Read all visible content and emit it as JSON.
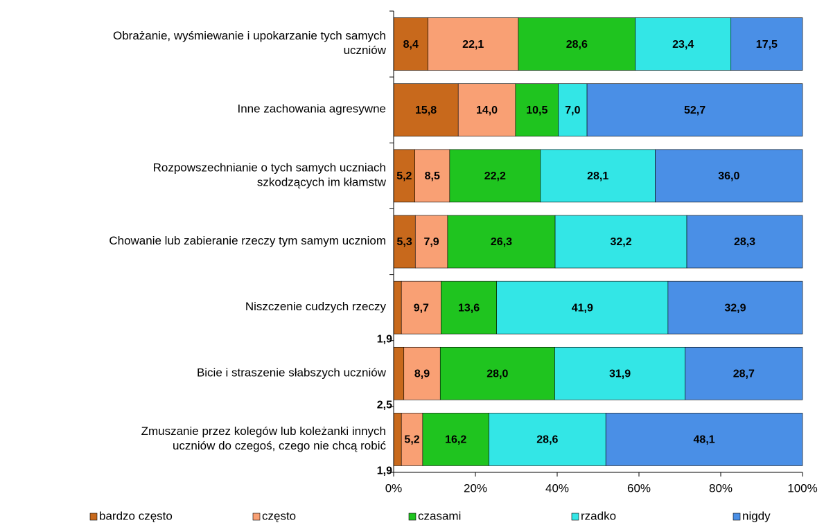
{
  "chart_data": {
    "type": "stacked_bar_horizontal",
    "categories": [
      "Obrażanie, wyśmiewanie i upokarzanie tych samych\nuczniów",
      "Inne zachowania agresywne",
      "Rozpowszechnianie o tych samych uczniach\nszkodzących im kłamstw",
      "Chowanie lub zabieranie rzeczy tym samym uczniom",
      "Niszczenie cudzych rzeczy",
      "Bicie i straszenie słabszych uczniów",
      "Zmuszanie przez kolegów lub koleżanki innych\nuczniów do czegoś, czego nie chcą robić"
    ],
    "series": [
      {
        "name": "bardzo często",
        "color": "#c8691c",
        "values": [
          8.4,
          15.8,
          5.2,
          5.3,
          1.9,
          2.5,
          1.9
        ],
        "value_labels": [
          "8,4",
          "15,8",
          "5,2",
          "5,3",
          "1,9",
          "2,5",
          "1,9"
        ]
      },
      {
        "name": "często",
        "color": "#f9a074",
        "values": [
          22.1,
          14.0,
          8.5,
          7.9,
          9.7,
          8.9,
          5.2
        ],
        "value_labels": [
          "22,1",
          "14,0",
          "8,5",
          "7,9",
          "9,7",
          "8,9",
          "5,2"
        ]
      },
      {
        "name": "czasami",
        "color": "#1fc41f",
        "values": [
          28.6,
          10.5,
          22.2,
          26.3,
          13.6,
          28.0,
          16.2
        ],
        "value_labels": [
          "28,6",
          "10,5",
          "22,2",
          "26,3",
          "13,6",
          "28,0",
          "16,2"
        ]
      },
      {
        "name": "rzadko",
        "color": "#33e6e6",
        "values": [
          23.4,
          7.0,
          28.1,
          32.2,
          41.9,
          31.9,
          28.6
        ],
        "value_labels": [
          "23,4",
          "7,0",
          "28,1",
          "32,2",
          "41,9",
          "31,9",
          "28,6"
        ]
      },
      {
        "name": "nigdy",
        "color": "#4a8fe6",
        "values": [
          17.5,
          52.7,
          36.0,
          28.3,
          32.9,
          28.7,
          48.1
        ],
        "value_labels": [
          "17,5",
          "52,7",
          "36,0",
          "28,3",
          "32,9",
          "28,7",
          "48,1"
        ]
      }
    ],
    "xlim": [
      0,
      100
    ],
    "xticks": [
      {
        "value": 0,
        "label": "0%"
      },
      {
        "value": 20,
        "label": "20%"
      },
      {
        "value": 40,
        "label": "40%"
      },
      {
        "value": 60,
        "label": "60%"
      },
      {
        "value": 80,
        "label": "80%"
      },
      {
        "value": 100,
        "label": "100%"
      }
    ],
    "legend": "bottom"
  }
}
